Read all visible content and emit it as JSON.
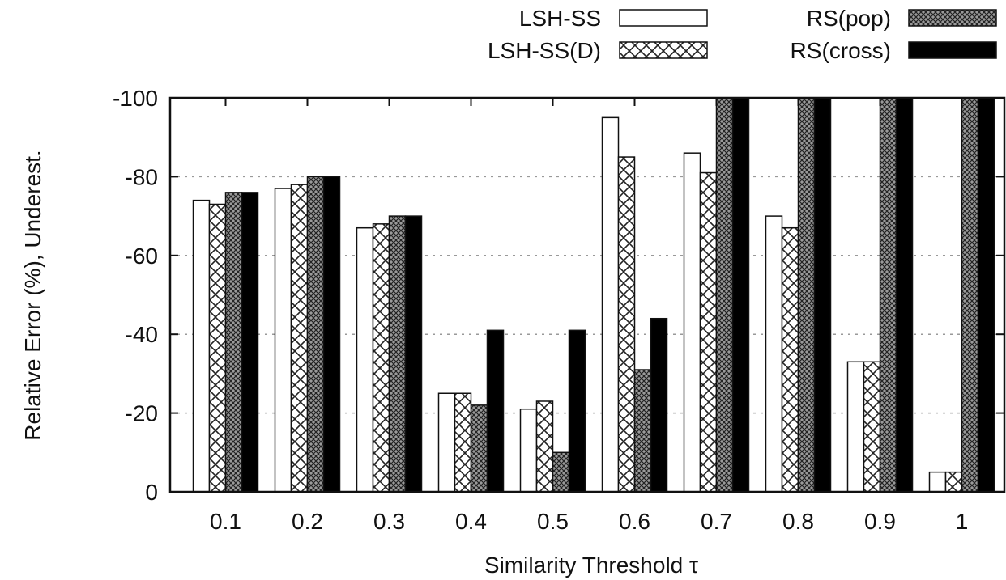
{
  "chart_data": {
    "type": "bar",
    "xlabel": "Similarity Threshold τ",
    "ylabel": "Relative Error (%), Underest.",
    "ylim": [
      0,
      -100
    ],
    "axis_direction": "reversed (0 at bottom, -100 at top)",
    "grid": "horizontal dotted",
    "legend_position": "top",
    "categories": [
      "0.1",
      "0.2",
      "0.3",
      "0.4",
      "0.5",
      "0.6",
      "0.7",
      "0.8",
      "0.9",
      "1"
    ],
    "yticks": [
      "0",
      "-20",
      "-40",
      "-60",
      "-80",
      "-100"
    ],
    "series": [
      {
        "name": "LSH-SS",
        "pattern": "white",
        "values": [
          -74,
          -77,
          -67,
          -25,
          -21,
          -95,
          -86,
          -70,
          -33,
          -5
        ]
      },
      {
        "name": "LSH-SS(D)",
        "pattern": "crosshatch-light",
        "values": [
          -73,
          -78,
          -68,
          -25,
          -23,
          -85,
          -81,
          -67,
          -33,
          -5
        ]
      },
      {
        "name": "RS(pop)",
        "pattern": "crosshatch-dense",
        "values": [
          -76,
          -80,
          -70,
          -22,
          -10,
          -31,
          -100,
          -100,
          -100,
          -100
        ]
      },
      {
        "name": "RS(cross)",
        "pattern": "black",
        "values": [
          -76,
          -80,
          -70,
          -41,
          -41,
          -44,
          -100,
          -100,
          -100,
          -100
        ]
      }
    ]
  }
}
